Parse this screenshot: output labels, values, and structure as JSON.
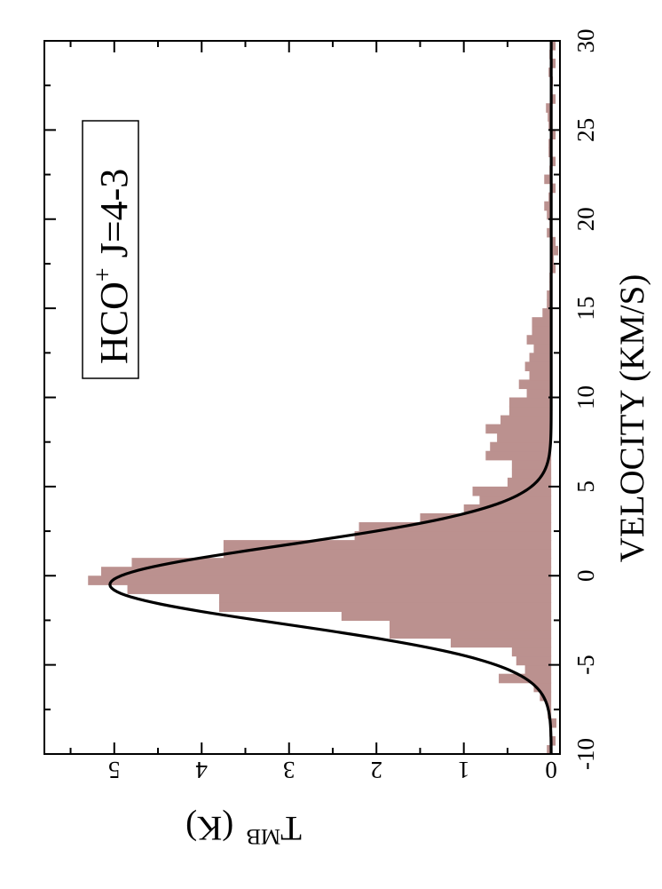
{
  "chart_data": {
    "type": "histogram",
    "orientation": "rotated-90-clockwise",
    "xlabel": "VELOCITY (KM/S)",
    "ylabel": "T",
    "ylabel_sub": "MB",
    "ylabel_unit": "(K)",
    "xlim": [
      -10,
      30
    ],
    "ylim": [
      -0.1,
      5.8
    ],
    "x_ticks": [
      -10,
      -5,
      0,
      5,
      10,
      15,
      20,
      25,
      30
    ],
    "x_tick_labels": [
      "-10",
      "-5",
      "0",
      "5",
      "10",
      "15",
      "20",
      "25",
      "30"
    ],
    "y_ticks": [
      0,
      1,
      2,
      3,
      4,
      5
    ],
    "y_tick_labels": [
      "0",
      "1",
      "2",
      "3",
      "4",
      "5"
    ],
    "legend": {
      "text_main": "HCO",
      "text_sup": "+",
      "text_rest": " J=4-3"
    },
    "colors": {
      "histogram": "#bb918f",
      "fit": "#000000"
    },
    "series": [
      {
        "kind": "histogram-bin-edges",
        "x": [
          -10,
          -9.5,
          -9,
          -8.5,
          -8,
          -7.5,
          -7,
          -6.5,
          -6,
          -5.5,
          -5,
          -4.5,
          -4,
          -3.5,
          -3,
          -2.5,
          -2,
          -1.5,
          -1,
          -0.5,
          0,
          0.5,
          1,
          1.5,
          2,
          2.5,
          3,
          3.5,
          4,
          4.5,
          5,
          5.5,
          6,
          6.5,
          7,
          7.5,
          8,
          8.5,
          9,
          9.5,
          10,
          10.5,
          11,
          11.5,
          12,
          12.5,
          13,
          13.5,
          14,
          14.5,
          15,
          15.5,
          16,
          16.5,
          17,
          17.5,
          18,
          18.5,
          19,
          19.5,
          20,
          20.5,
          21,
          21.5,
          22,
          22.5,
          23,
          23.5,
          24,
          24.5,
          25,
          25.5,
          26,
          26.5,
          27,
          27.5,
          28,
          28.5,
          29,
          29.5,
          30
        ],
        "values": [
          0.05,
          -0.05,
          0.02,
          -0.06,
          0.04,
          0.05,
          0.13,
          0.2,
          0.6,
          0.3,
          0.4,
          0.45,
          1.15,
          1.85,
          1.85,
          2.4,
          3.8,
          3.8,
          4.85,
          5.3,
          5.15,
          4.8,
          3.75,
          3.75,
          2.25,
          2.2,
          1.5,
          1.0,
          0.82,
          0.9,
          0.5,
          0.45,
          0.45,
          0.75,
          0.7,
          0.62,
          0.75,
          0.58,
          0.48,
          0.48,
          0.28,
          0.37,
          0.25,
          0.3,
          0.25,
          0.2,
          0.28,
          0.22,
          0.22,
          0.1,
          0.05,
          0.05,
          0.02,
          0.02,
          -0.05,
          -0.03,
          -0.08,
          -0.05,
          0.05,
          0.02,
          0.05,
          0.08,
          0.03,
          -0.05,
          0.08,
          0.02,
          -0.05,
          0.03,
          0.03,
          -0.05,
          0.03,
          0.04,
          0.06,
          -0.05,
          0.01,
          -0.02,
          0.03,
          -0.05,
          0.02,
          -0.05,
          0.02
        ]
      },
      {
        "kind": "gaussian-fit",
        "amplitude": 5.05,
        "center": -0.5,
        "fwhm": 5.2,
        "baseline": 0.0
      }
    ]
  }
}
